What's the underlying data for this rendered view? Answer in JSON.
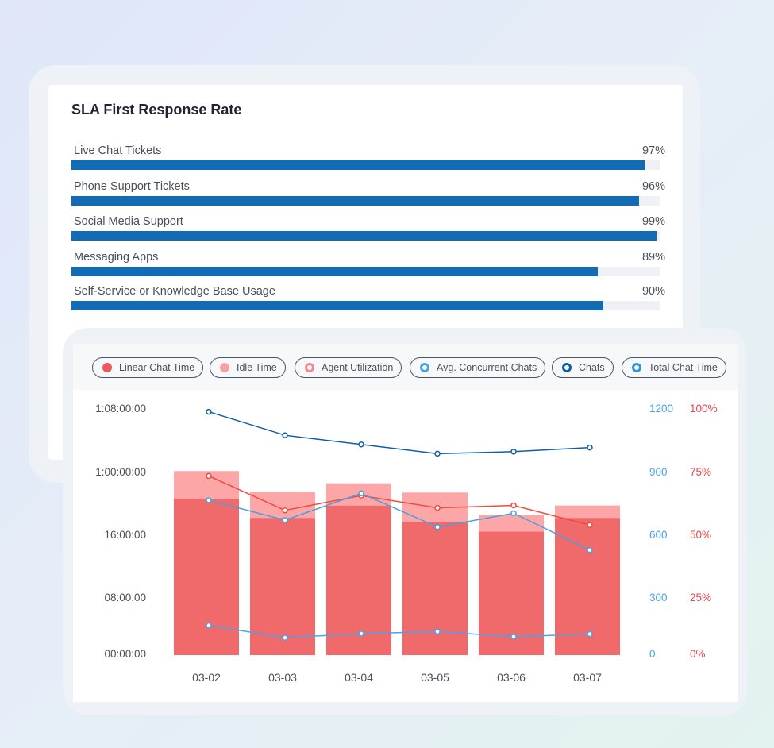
{
  "sla": {
    "title": "SLA First Response Rate",
    "items": [
      {
        "label": "Live Chat Tickets",
        "value_text": "97%",
        "value": 97
      },
      {
        "label": "Phone Support Tickets",
        "value_text": "96%",
        "value": 96
      },
      {
        "label": "Social Media Support",
        "value_text": "99%",
        "value": 99
      },
      {
        "label": "Messaging Apps",
        "value_text": "89%",
        "value": 89
      },
      {
        "label": "Self-Service or Knowledge Base Usage",
        "value_text": "90%",
        "value": 90
      }
    ],
    "bar_color": "#126bb5"
  },
  "legend": [
    {
      "label": "Linear Chat Time",
      "color": "#ea5a5f",
      "style": "filled"
    },
    {
      "label": "Idle Time",
      "color": "#f7a1a4",
      "style": "filled"
    },
    {
      "label": "Agent Utilization",
      "color": "#f28b8f",
      "style": "ring"
    },
    {
      "label": "Avg. Concurrent Chats",
      "color": "#4aa3e8",
      "style": "ring"
    },
    {
      "label": "Chats",
      "color": "#115ea8",
      "style": "ring"
    },
    {
      "label": "Total Chat Time",
      "color": "#2f97d8",
      "style": "ring"
    }
  ],
  "chart_data": {
    "type": "bar",
    "categories": [
      "03-02",
      "03-03",
      "03-04",
      "03-05",
      "03-06",
      "03-07"
    ],
    "y_left_ticks": [
      "00:00:00",
      "08:00:00",
      "16:00:00",
      "1:00:00:00",
      "1:08:00:00"
    ],
    "y_mid_ticks": [
      "0",
      "300",
      "600",
      "900",
      "1200"
    ],
    "y_right_ticks": [
      "0%",
      "25%",
      "50%",
      "75%",
      "100%"
    ],
    "y_left_max_hours": 32,
    "y_mid_max": 1200,
    "y_right_max": 100,
    "series": [
      {
        "name": "Linear Chat Time",
        "kind": "bar",
        "axis": "left",
        "color": "#f06a6c",
        "values_hours": [
          20.4,
          17.9,
          19.5,
          17.4,
          16.1,
          17.9
        ]
      },
      {
        "name": "Idle Time",
        "kind": "stacked-bar",
        "axis": "left",
        "color": "#fca6a8",
        "values_hours": [
          3.6,
          3.4,
          2.9,
          3.8,
          2.2,
          1.6
        ]
      },
      {
        "name": "Agent Utilization",
        "kind": "line",
        "axis": "right",
        "color": "#ef4c3d",
        "values": [
          73,
          59,
          65,
          60,
          61,
          53
        ]
      },
      {
        "name": "Avg. Concurrent Chats",
        "kind": "line",
        "axis": "mid",
        "color": "#4aa3e8",
        "values": [
          145,
          85,
          105,
          115,
          90,
          103
        ]
      },
      {
        "name": "Chats",
        "kind": "line",
        "axis": "mid",
        "color": "#115ea8",
        "values": [
          1190,
          1075,
          1030,
          985,
          995,
          1015
        ]
      },
      {
        "name": "Total Chat Time",
        "kind": "line",
        "axis": "left",
        "color": "#4a9fdf",
        "values_hours": [
          20.2,
          17.6,
          21.1,
          16.7,
          18.5,
          13.7
        ]
      }
    ]
  }
}
